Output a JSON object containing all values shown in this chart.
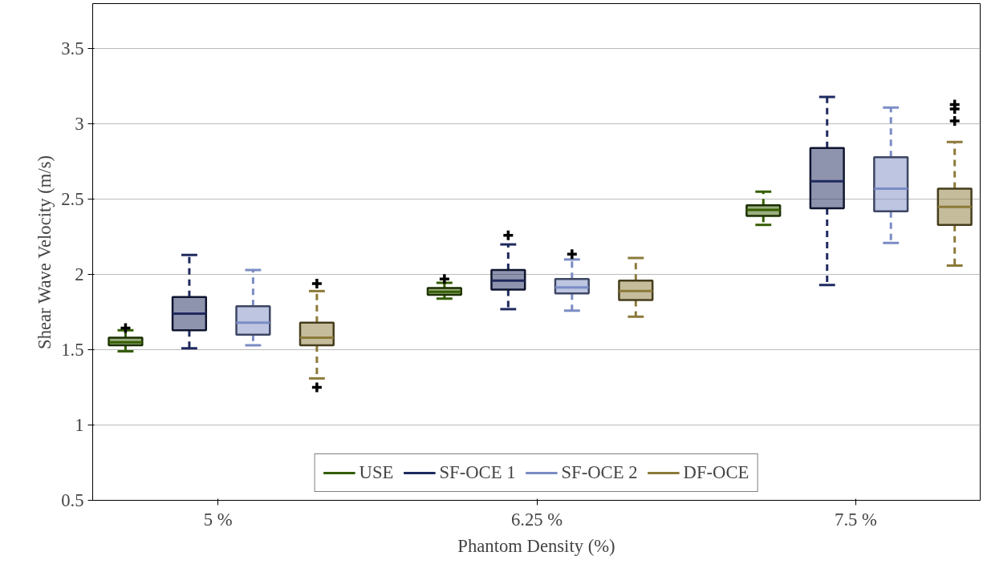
{
  "chart_data": {
    "type": "box",
    "xlabel": "Phantom Density (%)",
    "ylabel": "Shear Wave Velocity (m/s)",
    "categories": [
      "5 %",
      "6.25 %",
      "7.5 %"
    ],
    "ylim": [
      0.5,
      3.8
    ],
    "yticks": [
      0.5,
      1,
      1.5,
      2,
      2.5,
      3,
      3.5
    ],
    "grid": "y",
    "legend": "bottom",
    "marker": "cross",
    "line_style": "dashed",
    "series": [
      {
        "name": "USE",
        "color": "#355e00",
        "boxes": [
          {
            "low": 1.49,
            "q1": 1.53,
            "median": 1.55,
            "q3": 1.58,
            "high": 1.63,
            "outliers": [
              1.645
            ]
          },
          {
            "low": 1.84,
            "q1": 1.865,
            "median": 1.885,
            "q3": 1.91,
            "high": 1.945,
            "outliers": [
              1.97
            ]
          },
          {
            "low": 2.33,
            "q1": 2.39,
            "median": 2.43,
            "q3": 2.46,
            "high": 2.55
          }
        ]
      },
      {
        "name": "SF-OCE 1",
        "color": "#1f2a5e",
        "boxes": [
          {
            "low": 1.51,
            "q1": 1.63,
            "median": 1.74,
            "q3": 1.85,
            "high": 2.13
          },
          {
            "low": 1.77,
            "q1": 1.9,
            "median": 1.96,
            "q3": 2.03,
            "high": 2.2,
            "outliers": [
              2.26
            ]
          },
          {
            "low": 1.93,
            "q1": 2.44,
            "median": 2.62,
            "q3": 2.84,
            "high": 3.18
          }
        ]
      },
      {
        "name": "SF-OCE 2",
        "color": "#7b8cc4",
        "boxes": [
          {
            "low": 1.53,
            "q1": 1.6,
            "median": 1.68,
            "q3": 1.79,
            "high": 2.03
          },
          {
            "low": 1.76,
            "q1": 1.875,
            "median": 1.915,
            "q3": 1.97,
            "high": 2.1,
            "outliers": [
              2.135
            ]
          },
          {
            "low": 2.21,
            "q1": 2.42,
            "median": 2.57,
            "q3": 2.78,
            "high": 3.11
          }
        ]
      },
      {
        "name": "DF-OCE",
        "color": "#8c7a3a",
        "boxes": [
          {
            "low": 1.31,
            "q1": 1.53,
            "median": 1.58,
            "q3": 1.68,
            "high": 1.89,
            "outliers": [
              1.94,
              1.25
            ]
          },
          {
            "low": 1.72,
            "q1": 1.83,
            "median": 1.89,
            "q3": 1.96,
            "high": 2.11
          },
          {
            "low": 2.06,
            "q1": 2.33,
            "median": 2.45,
            "q3": 2.57,
            "high": 2.88,
            "outliers": [
              3.02,
              3.1,
              3.13
            ]
          }
        ]
      }
    ]
  }
}
